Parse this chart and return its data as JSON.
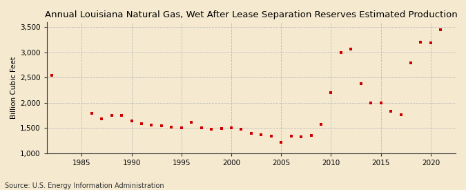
{
  "title": "Annual Louisiana Natural Gas, Wet After Lease Separation Reserves Estimated Production",
  "ylabel": "Billion Cubic Feet",
  "source": "Source: U.S. Energy Information Administration",
  "years": [
    1982,
    1986,
    1987,
    1988,
    1989,
    1990,
    1991,
    1992,
    1993,
    1994,
    1995,
    1996,
    1997,
    1998,
    1999,
    2000,
    2001,
    2002,
    2003,
    2004,
    2005,
    2006,
    2007,
    2008,
    2009,
    2010,
    2011,
    2012,
    2013,
    2014,
    2015,
    2016,
    2017,
    2018,
    2019,
    2020,
    2021
  ],
  "values": [
    2550,
    1790,
    1680,
    1750,
    1750,
    1640,
    1580,
    1560,
    1540,
    1510,
    1500,
    1610,
    1500,
    1470,
    1490,
    1500,
    1480,
    1390,
    1360,
    1340,
    1210,
    1340,
    1320,
    1350,
    1570,
    2200,
    3000,
    3070,
    2380,
    2000,
    1990,
    1830,
    1760,
    2790,
    3200,
    3190,
    3450
  ],
  "marker_color": "#cc0000",
  "marker": "s",
  "marker_size": 3.5,
  "bg_color": "#f5ead0",
  "ylim": [
    1000,
    3600
  ],
  "xlim": [
    1981.5,
    2022.5
  ],
  "yticks": [
    1000,
    1500,
    2000,
    2500,
    3000,
    3500
  ],
  "ytick_labels": [
    "1,000",
    "1,500",
    "2,000",
    "2,500",
    "3,000",
    "3,500"
  ],
  "xticks": [
    1985,
    1990,
    1995,
    2000,
    2005,
    2010,
    2015,
    2020
  ],
  "grid_color": "#bbbbbb",
  "grid_style": "--",
  "title_fontsize": 9.5,
  "tick_fontsize": 7.5,
  "ylabel_fontsize": 7.5,
  "source_fontsize": 7.0
}
